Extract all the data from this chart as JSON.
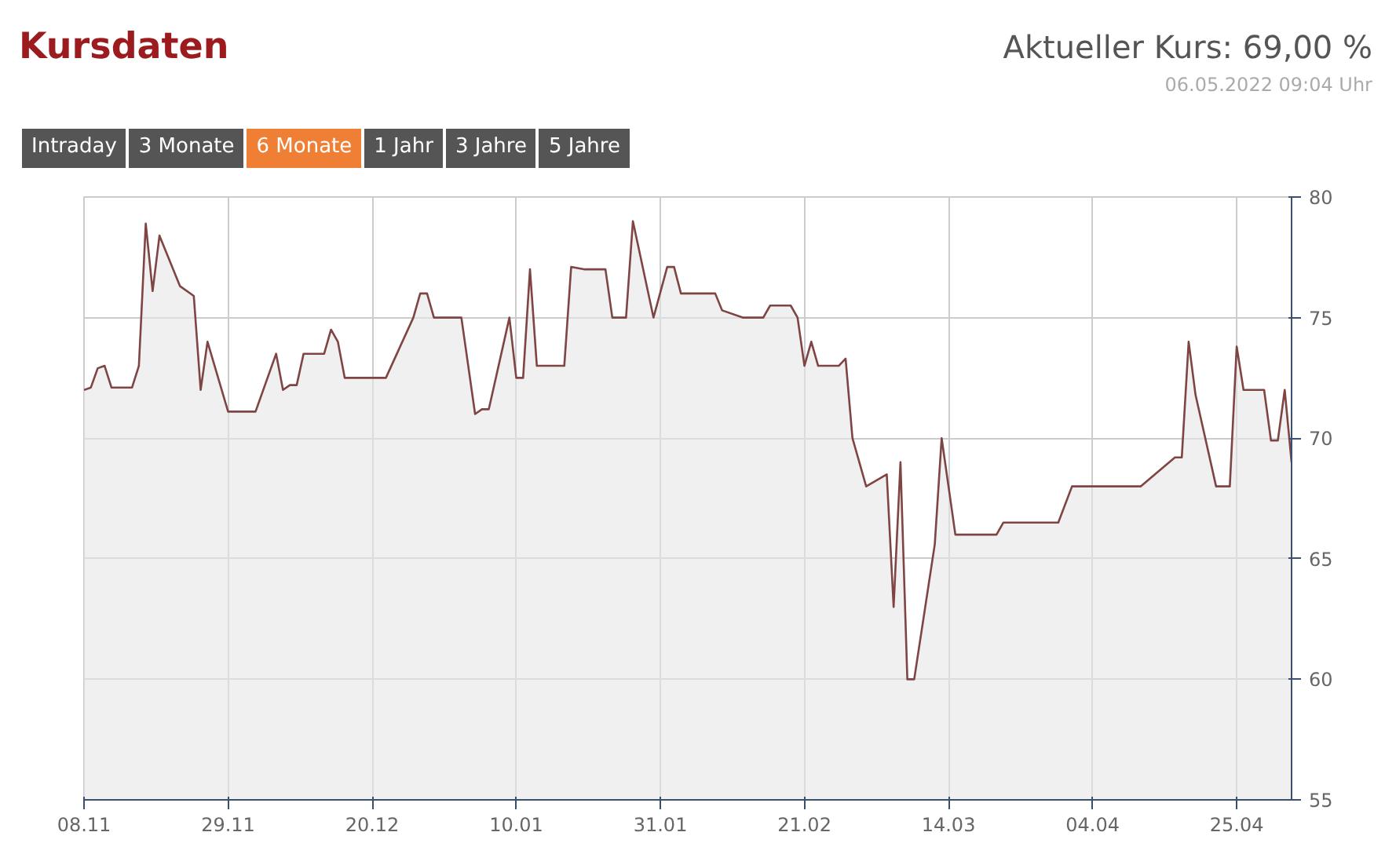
{
  "chart_data": {
    "type": "area",
    "title": "Kursdaten",
    "annotations": [
      "Aktueller Kurs: 69,00 %",
      "06.05.2022 09:04 Uhr",
      "Intraday",
      "3 Monate",
      "6 Monate",
      "1 Jahr",
      "3 Jahre",
      "5 Jahre"
    ],
    "x": [
      "2021-11-08",
      "2021-11-09",
      "2021-11-10",
      "2021-11-11",
      "2021-11-12",
      "2021-11-15",
      "2021-11-16",
      "2021-11-17",
      "2021-11-18",
      "2021-11-19",
      "2021-11-22",
      "2021-11-24",
      "2021-11-25",
      "2021-11-26",
      "2021-11-29",
      "2021-12-03",
      "2021-12-06",
      "2021-12-07",
      "2021-12-08",
      "2021-12-09",
      "2021-12-10",
      "2021-12-13",
      "2021-12-14",
      "2021-12-15",
      "2021-12-16",
      "2021-12-22",
      "2021-12-26",
      "2021-12-27",
      "2021-12-28",
      "2021-12-29",
      "2022-01-02",
      "2022-01-04",
      "2022-01-05",
      "2022-01-06",
      "2022-01-09",
      "2022-01-10",
      "2022-01-11",
      "2022-01-12",
      "2022-01-13",
      "2022-01-17",
      "2022-01-18",
      "2022-01-20",
      "2022-01-23",
      "2022-01-24",
      "2022-01-26",
      "2022-01-27",
      "2022-01-30",
      "2022-02-01",
      "2022-02-02",
      "2022-02-03",
      "2022-02-08",
      "2022-02-09",
      "2022-02-12",
      "2022-02-15",
      "2022-02-16",
      "2022-02-19",
      "2022-02-20",
      "2022-02-21",
      "2022-02-22",
      "2022-02-23",
      "2022-02-26",
      "2022-02-27",
      "2022-02-28",
      "2022-03-02",
      "2022-03-05",
      "2022-03-06",
      "2022-03-07",
      "2022-03-08",
      "2022-03-09",
      "2022-03-12",
      "2022-03-13",
      "2022-03-15",
      "2022-03-21",
      "2022-03-22",
      "2022-03-30",
      "2022-04-01",
      "2022-04-11",
      "2022-04-16",
      "2022-04-17",
      "2022-04-18",
      "2022-04-19",
      "2022-04-22",
      "2022-04-24",
      "2022-04-25",
      "2022-04-26",
      "2022-04-29",
      "2022-04-30",
      "2022-05-01",
      "2022-05-02",
      "2022-05-03"
    ],
    "series": [
      {
        "color": "#7f4444",
        "values": [
          72.0,
          72.1,
          72.9,
          73.0,
          72.1,
          72.1,
          73.0,
          78.9,
          76.1,
          78.4,
          76.3,
          75.9,
          72.0,
          74.0,
          71.1,
          71.1,
          73.5,
          72.0,
          72.2,
          72.2,
          73.5,
          73.5,
          74.5,
          74.0,
          72.5,
          72.5,
          75.0,
          76.0,
          76.0,
          75.0,
          75.0,
          71.0,
          71.2,
          71.2,
          75.0,
          72.5,
          72.5,
          77.0,
          73.0,
          73.0,
          77.1,
          77.0,
          77.0,
          75.0,
          75.0,
          79.0,
          75.0,
          77.1,
          77.1,
          76.0,
          76.0,
          75.3,
          75.0,
          75.0,
          75.5,
          75.5,
          75.0,
          73.0,
          74.0,
          73.0,
          73.0,
          73.3,
          70.0,
          68.0,
          68.5,
          63.0,
          69.0,
          60.0,
          60.0,
          65.6,
          70.0,
          66.0,
          66.0,
          66.5,
          66.5,
          68.0,
          68.0,
          69.2,
          69.2,
          74.0,
          71.8,
          68.0,
          68.0,
          73.8,
          72.0,
          72.0,
          69.9,
          69.9,
          72.0,
          69.0
        ]
      }
    ],
    "xlim": [
      "2021-11-08",
      "2022-05-03"
    ],
    "xticks": [
      {
        "value": "2021-11-08",
        "label": "08.11"
      },
      {
        "value": "2021-11-29",
        "label": "29.11"
      },
      {
        "value": "2021-12-20",
        "label": "20.12"
      },
      {
        "value": "2022-01-10",
        "label": "10.01"
      },
      {
        "value": "2022-01-31",
        "label": "31.01"
      },
      {
        "value": "2022-02-21",
        "label": "21.02"
      },
      {
        "value": "2022-03-14",
        "label": "14.03"
      },
      {
        "value": "2022-04-04",
        "label": "04.04"
      },
      {
        "value": "2022-04-25",
        "label": "25.04"
      }
    ],
    "ylim": [
      55,
      80
    ],
    "yticks": [
      55,
      60,
      65,
      70,
      75,
      80
    ],
    "grid": true
  }
}
